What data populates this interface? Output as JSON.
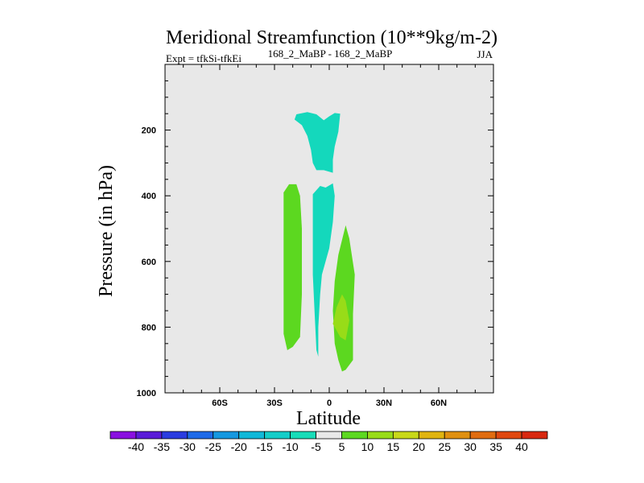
{
  "chart_data": {
    "type": "contour",
    "title": "Meridional Streamfunction (10**9kg/m-2)",
    "left_label": "Expt = tfkSi-tfkEi",
    "center_label": "168_2_MaBP - 168_2_MaBP",
    "right_label": "JJA",
    "xlabel": "Latitude",
    "ylabel": "Pressure (in hPa)",
    "xlim": [
      -90,
      90
    ],
    "ylim": [
      1000,
      0
    ],
    "x_ticks": [
      -60,
      -30,
      0,
      30,
      60
    ],
    "x_tick_labels": [
      "60S",
      "30S",
      "0",
      "30N",
      "60N"
    ],
    "y_ticks": [
      200,
      400,
      600,
      800,
      1000
    ],
    "y_tick_labels": [
      "200",
      "400",
      "600",
      "800",
      "1000"
    ],
    "background_color": "#e8e8e8",
    "colorbar": {
      "labels": [
        "-40",
        "-35",
        "-30",
        "-25",
        "-20",
        "-15",
        "-10",
        "-5",
        "5",
        "10",
        "15",
        "20",
        "25",
        "30",
        "35",
        "40"
      ],
      "colors": [
        "#8a10e0",
        "#5a1cd8",
        "#2a3ce0",
        "#1e6ae8",
        "#1598e0",
        "#10b8d8",
        "#14cdc8",
        "#18dcb8",
        "#e8e8e8",
        "#5cd820",
        "#98dc18",
        "#c8d818",
        "#e0b410",
        "#e09010",
        "#e06c10",
        "#e04810",
        "#d82810"
      ]
    },
    "regions": [
      {
        "name": "upper-negative-cell",
        "level": -5,
        "color": "#14d8bc",
        "points": [
          [
            -18,
            152
          ],
          [
            -12,
            145
          ],
          [
            -7,
            152
          ],
          [
            -3,
            170
          ],
          [
            0,
            158
          ],
          [
            3,
            148
          ],
          [
            6,
            150
          ],
          [
            5,
            205
          ],
          [
            3,
            250
          ],
          [
            2,
            290
          ],
          [
            2,
            330
          ],
          [
            -3,
            322
          ],
          [
            -7,
            322
          ],
          [
            -9,
            300
          ],
          [
            -10,
            260
          ],
          [
            -12,
            218
          ],
          [
            -15,
            185
          ],
          [
            -19,
            168
          ]
        ]
      },
      {
        "name": "lower-negative-cell",
        "level": -5,
        "color": "#14d8bc",
        "points": [
          [
            -9,
            395
          ],
          [
            -5,
            370
          ],
          [
            -2,
            375
          ],
          [
            2,
            362
          ],
          [
            3,
            400
          ],
          [
            2,
            480
          ],
          [
            0,
            560
          ],
          [
            -4,
            640
          ],
          [
            -5,
            700
          ],
          [
            -6,
            800
          ],
          [
            -6,
            890
          ],
          [
            -7,
            870
          ],
          [
            -8,
            760
          ],
          [
            -9,
            640
          ],
          [
            -9,
            520
          ]
        ]
      },
      {
        "name": "southern-positive-cell",
        "level": 5,
        "color": "#5cd820",
        "points": [
          [
            -25,
            390
          ],
          [
            -22,
            365
          ],
          [
            -18,
            365
          ],
          [
            -16,
            400
          ],
          [
            -15,
            500
          ],
          [
            -15,
            700
          ],
          [
            -16,
            830
          ],
          [
            -20,
            860
          ],
          [
            -23,
            870
          ],
          [
            -25,
            820
          ],
          [
            -25,
            600
          ]
        ]
      },
      {
        "name": "northern-positive-cell",
        "level": 5,
        "color": "#5cd820",
        "points": [
          [
            9,
            490
          ],
          [
            11,
            530
          ],
          [
            14,
            640
          ],
          [
            13,
            760
          ],
          [
            13,
            900
          ],
          [
            9,
            930
          ],
          [
            7,
            935
          ],
          [
            5,
            900
          ],
          [
            3,
            850
          ],
          [
            2,
            750
          ],
          [
            3,
            660
          ],
          [
            5,
            580
          ]
        ]
      },
      {
        "name": "northern-positive-core",
        "level": 10,
        "color": "#98dc18",
        "points": [
          [
            7,
            700
          ],
          [
            9,
            720
          ],
          [
            11,
            780
          ],
          [
            9,
            840
          ],
          [
            6,
            830
          ],
          [
            2,
            790
          ],
          [
            4,
            740
          ]
        ]
      }
    ]
  }
}
